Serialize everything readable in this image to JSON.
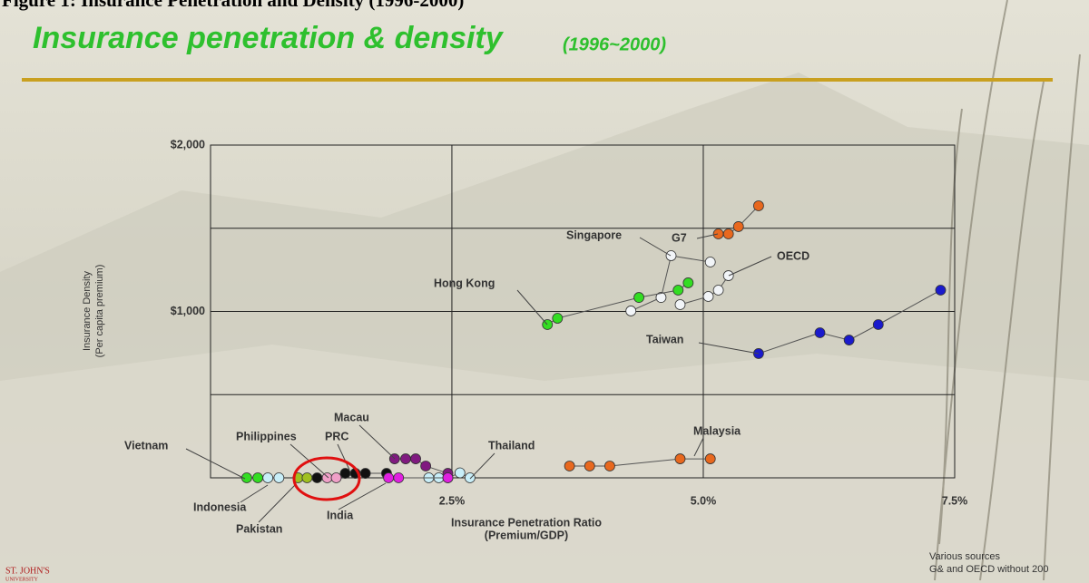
{
  "header": {
    "figure_caption": "Figure 1: Insurance Penetration and Density (1996-2000)"
  },
  "footer": {
    "source_lines": [
      "Various sources",
      "G& and OECD without 200"
    ],
    "logo_lines": [
      "ST. JOHN'S",
      "UNIVERSITY"
    ]
  },
  "chart_data": {
    "type": "line",
    "title": "Insurance penetration & density",
    "title_suffix": "(1996~2000)",
    "x_label_lines": [
      "Insurance Penetration Ratio",
      "(Premium/GDP)"
    ],
    "y_label_lines": [
      "Insurance Density",
      "(Per capita premium)"
    ],
    "xlim": [
      0.1,
      7.5
    ],
    "ylim": [
      0,
      2000
    ],
    "xticks": [
      {
        "value": 2.5,
        "label": "2.5%"
      },
      {
        "value": 5.0,
        "label": "5.0%"
      },
      {
        "value": 7.5,
        "label": "7.5%"
      }
    ],
    "yticks": [
      {
        "value": 1000,
        "label": "$1,000"
      },
      {
        "value": 2000,
        "label": "$2,000"
      }
    ],
    "ygrid": [
      500,
      1500
    ],
    "grid": true,
    "series": [
      {
        "name": "G7",
        "color": "#e8681e",
        "x": [
          5.15,
          5.25,
          5.35,
          5.55
        ],
        "values": [
          1466,
          1466,
          1510,
          1635
        ]
      },
      {
        "name": "Singapore",
        "color": "#f2f5f8",
        "x": [
          4.28,
          4.58,
          4.68,
          5.07
        ],
        "values": [
          1003,
          1084,
          1335,
          1297
        ]
      },
      {
        "name": "OECD",
        "color": "#f2f5f8",
        "x": [
          4.77,
          5.05,
          5.15,
          5.25
        ],
        "values": [
          1041,
          1090,
          1128,
          1215
        ]
      },
      {
        "name": "Hong Kong",
        "color": "#33dd22",
        "x": [
          3.45,
          3.55,
          4.36,
          4.75,
          4.85
        ],
        "values": [
          921,
          959,
          1084,
          1128,
          1172
        ]
      },
      {
        "name": "Taiwan",
        "color": "#1a1acc",
        "x": [
          5.55,
          6.16,
          6.45,
          6.74,
          7.36
        ],
        "values": [
          747,
          872,
          828,
          921,
          1128
        ]
      },
      {
        "name": "Malaysia",
        "color": "#e8681e",
        "x": [
          3.67,
          3.87,
          4.07,
          4.77,
          5.07
        ],
        "values": [
          71,
          71,
          71,
          114,
          114
        ]
      },
      {
        "name": "Thailand",
        "color": "#c8eef8",
        "x": [
          2.27,
          2.37,
          2.46,
          2.58,
          2.68
        ],
        "values": [
          0,
          0,
          0,
          30,
          0
        ]
      },
      {
        "name": "Macau",
        "color": "#801a80",
        "x": [
          1.93,
          2.04,
          2.14,
          2.24,
          2.46
        ],
        "values": [
          114,
          114,
          114,
          71,
          27
        ]
      },
      {
        "name": "PRC",
        "color": "#111111",
        "x": [
          1.16,
          1.44,
          1.54,
          1.64,
          1.85
        ],
        "values": [
          0,
          27,
          27,
          27,
          27
        ]
      },
      {
        "name": "India",
        "color": "#e020e0",
        "x": [
          1.87,
          1.97,
          2.46
        ],
        "values": [
          0,
          0,
          0
        ]
      },
      {
        "name": "Philippines",
        "color": "#f0a0c8",
        "x": [
          1.26,
          1.35
        ],
        "values": [
          0,
          0
        ]
      },
      {
        "name": "Pakistan",
        "color": "#a0c020",
        "x": [
          0.97,
          1.06
        ],
        "values": [
          0,
          0
        ]
      },
      {
        "name": "Indonesia",
        "color": "#c8eef8",
        "x": [
          0.67,
          0.78
        ],
        "values": [
          0,
          0
        ]
      },
      {
        "name": "Vietnam",
        "color": "#33dd22",
        "x": [
          0.46,
          0.57
        ],
        "values": [
          0,
          0
        ]
      }
    ]
  }
}
